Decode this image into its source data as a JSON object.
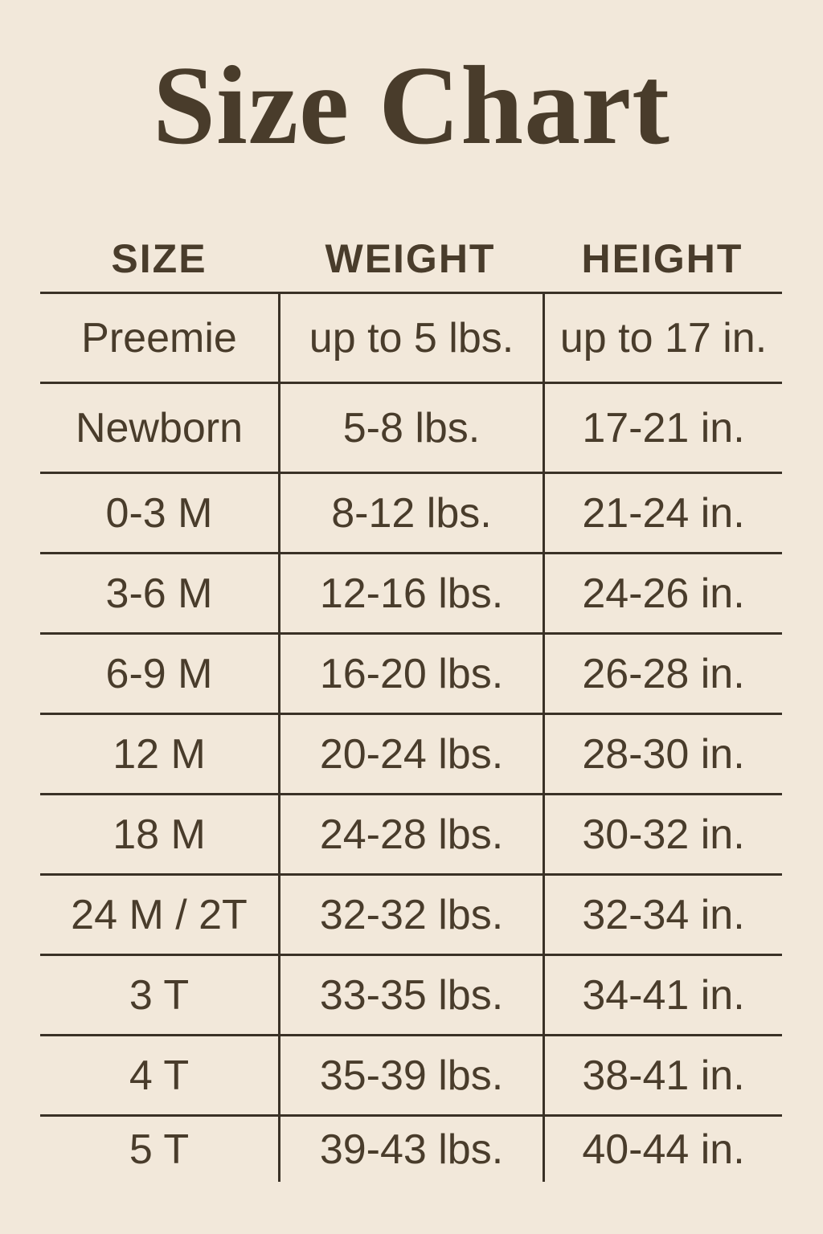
{
  "title": "Size Chart",
  "colors": {
    "background": "#f2e8da",
    "ink": "#493c2b",
    "line": "#3a3126"
  },
  "table": {
    "headers": [
      "SIZE",
      "WEIGHT",
      "HEIGHT"
    ],
    "rows": [
      [
        "Preemie",
        "up to 5 lbs.",
        "up to 17 in."
      ],
      [
        "Newborn",
        "5-8 lbs.",
        "17-21 in."
      ],
      [
        "0-3 M",
        "8-12 lbs.",
        "21-24 in."
      ],
      [
        "3-6 M",
        "12-16 lbs.",
        "24-26 in."
      ],
      [
        "6-9 M",
        "16-20 lbs.",
        "26-28 in."
      ],
      [
        "12 M",
        "20-24 lbs.",
        "28-30 in."
      ],
      [
        "18 M",
        "24-28 lbs.",
        "30-32 in."
      ],
      [
        "24 M / 2T",
        "32-32 lbs.",
        "32-34 in."
      ],
      [
        "3 T",
        "33-35 lbs.",
        "34-41 in."
      ],
      [
        "4 T",
        "35-39 lbs.",
        "38-41 in."
      ],
      [
        "5 T",
        "39-43 lbs.",
        "40-44 in."
      ]
    ]
  }
}
